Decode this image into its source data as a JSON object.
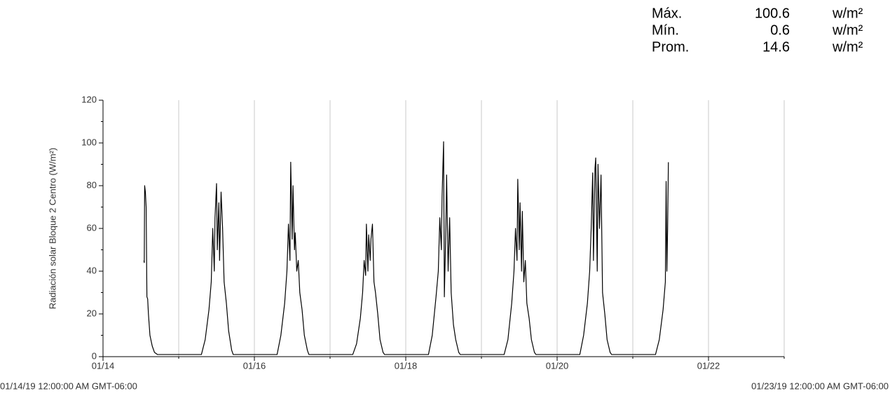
{
  "chart_data": {
    "type": "line",
    "stats": [
      {
        "label": "Máx.",
        "value": 100.6,
        "unit": "w/m²"
      },
      {
        "label": "Mín.",
        "value": 0.6,
        "unit": "w/m²"
      },
      {
        "label": "Prom.",
        "value": 14.6,
        "unit": "w/m²"
      }
    ],
    "y_label": "Radiación solar Bloque 2 Centro (W/m²)",
    "start_label": "01/14/19 12:00:00 AM GMT-06:00",
    "end_label": "01/23/19 12:00:00 AM GMT-06:00",
    "color": "#000000",
    "x": [
      14.54,
      14.545,
      14.55,
      14.56,
      14.57,
      14.58,
      14.59,
      14.6,
      14.62,
      14.65,
      14.68,
      14.72,
      15.3,
      15.35,
      15.4,
      15.43,
      15.45,
      15.47,
      15.48,
      15.5,
      15.51,
      15.53,
      15.54,
      15.56,
      15.58,
      15.6,
      15.63,
      15.66,
      15.7,
      15.72,
      16.3,
      16.35,
      16.4,
      16.43,
      16.45,
      16.47,
      16.48,
      16.5,
      16.51,
      16.53,
      16.54,
      16.56,
      16.58,
      16.6,
      16.63,
      16.66,
      16.7,
      16.72,
      17.3,
      17.35,
      17.4,
      17.43,
      17.45,
      17.47,
      17.48,
      17.5,
      17.51,
      17.53,
      17.54,
      17.56,
      17.58,
      17.6,
      17.63,
      17.66,
      17.7,
      17.72,
      18.3,
      18.35,
      18.4,
      18.43,
      18.45,
      18.47,
      18.48,
      18.5,
      18.51,
      18.53,
      18.54,
      18.56,
      18.58,
      18.6,
      18.63,
      18.66,
      18.7,
      18.72,
      19.3,
      19.35,
      19.4,
      19.43,
      19.45,
      19.47,
      19.48,
      19.5,
      19.51,
      19.53,
      19.54,
      19.56,
      19.58,
      19.6,
      19.63,
      19.66,
      19.7,
      19.72,
      20.3,
      20.35,
      20.4,
      20.43,
      20.45,
      20.47,
      20.48,
      20.5,
      20.51,
      20.53,
      20.54,
      20.56,
      20.58,
      20.6,
      20.63,
      20.66,
      20.7,
      20.72,
      21.3,
      21.35,
      21.4,
      21.43,
      21.44,
      21.45,
      21.46,
      21.47
    ],
    "values": [
      45,
      44,
      80,
      77,
      70,
      28,
      27,
      20,
      10,
      5,
      2,
      1,
      1,
      8,
      22,
      35,
      60,
      40,
      65,
      81,
      50,
      72,
      45,
      77,
      60,
      35,
      25,
      12,
      3,
      1,
      1,
      10,
      25,
      40,
      62,
      45,
      91,
      55,
      80,
      50,
      58,
      40,
      45,
      30,
      22,
      10,
      3,
      1,
      1,
      6,
      18,
      30,
      45,
      38,
      62,
      40,
      57,
      45,
      55,
      62,
      35,
      30,
      20,
      8,
      2,
      1,
      1,
      10,
      28,
      40,
      65,
      50,
      75,
      100.6,
      28,
      60,
      85,
      40,
      65,
      30,
      15,
      8,
      2,
      1,
      1,
      8,
      25,
      40,
      60,
      45,
      83,
      50,
      72,
      40,
      68,
      35,
      45,
      25,
      18,
      8,
      2,
      1,
      1,
      10,
      25,
      40,
      60,
      86,
      45,
      88,
      93,
      40,
      90,
      60,
      85,
      30,
      20,
      8,
      2,
      1,
      1,
      8,
      22,
      35,
      82,
      40,
      60,
      91
    ],
    "xlim": [
      14,
      23
    ],
    "xticks": [
      {
        "value": 14,
        "label": "01/14"
      },
      {
        "value": 16,
        "label": "01/16"
      },
      {
        "value": 18,
        "label": "01/18"
      },
      {
        "value": 20,
        "label": "01/20"
      },
      {
        "value": 22,
        "label": "01/22"
      }
    ],
    "x_minor_ticks": [
      15,
      17,
      19,
      21,
      23
    ],
    "x_grid": [
      15,
      16,
      17,
      18,
      19,
      20,
      21,
      22,
      23
    ],
    "ylim": [
      0,
      120
    ],
    "yticks": [
      0,
      20,
      40,
      60,
      80,
      100,
      120
    ],
    "y_minor_ticks": [
      10,
      30,
      50,
      70,
      90,
      110
    ],
    "grid": true
  }
}
